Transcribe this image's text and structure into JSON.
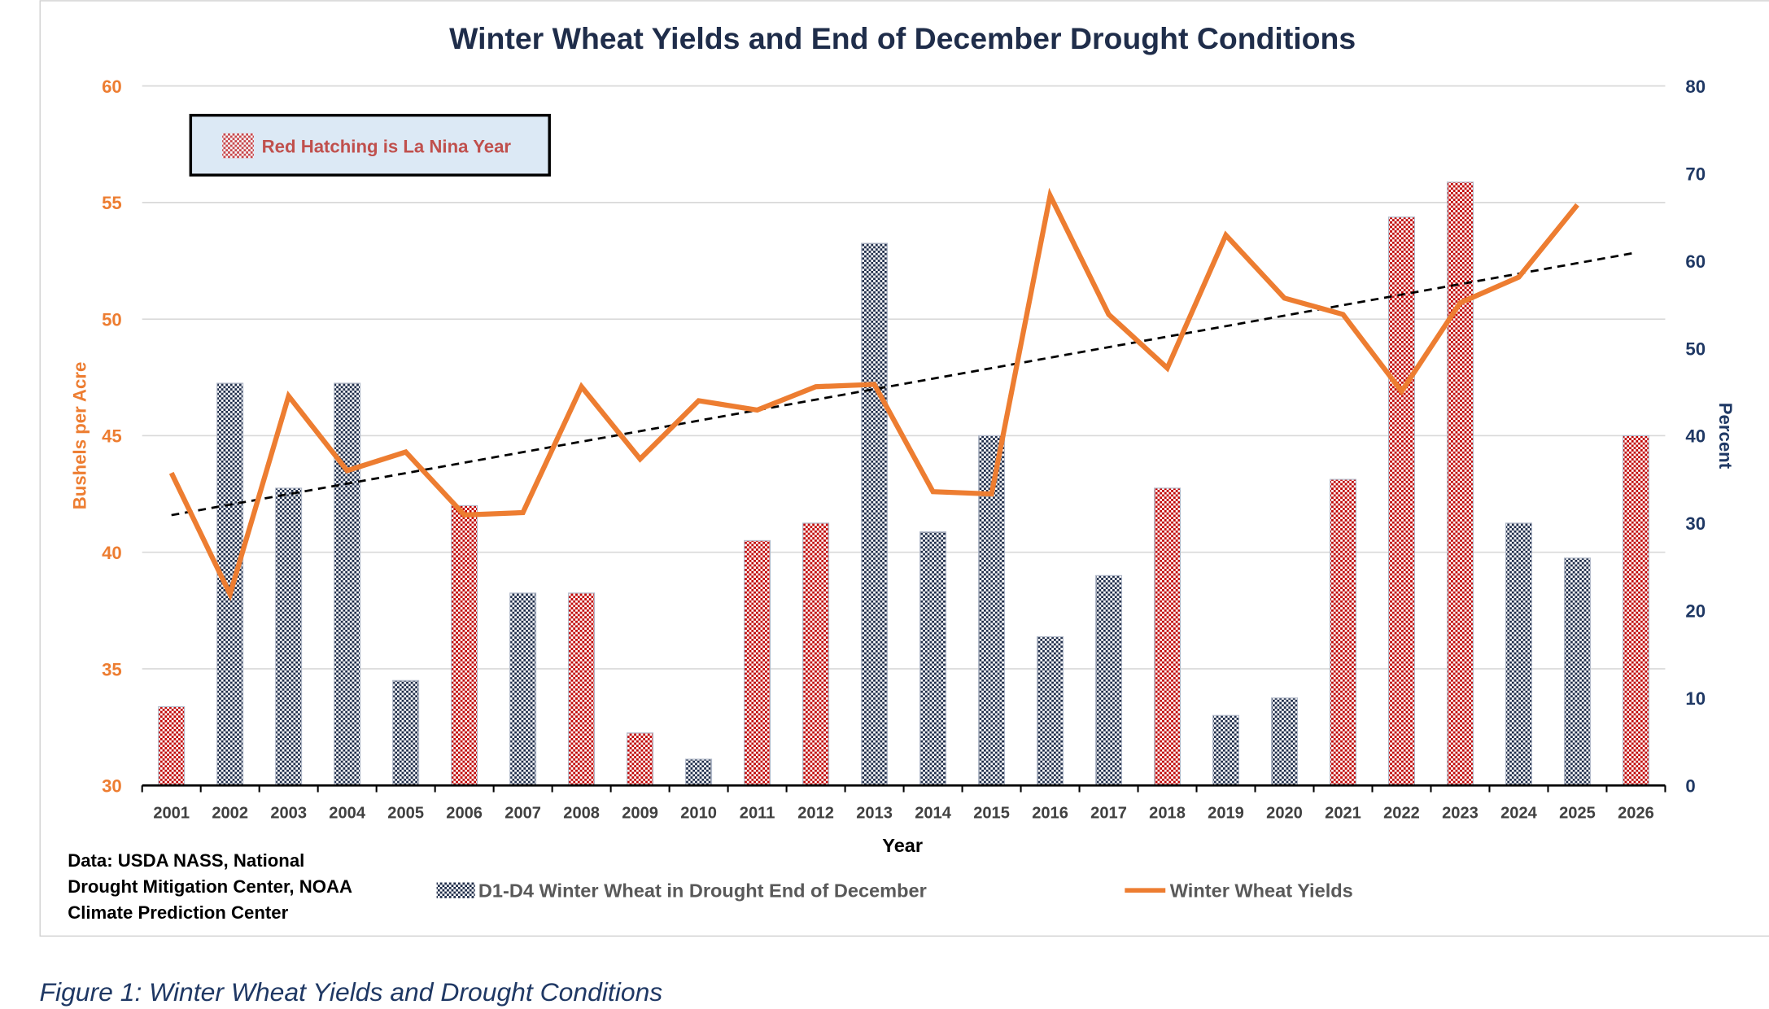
{
  "chart_data": {
    "type": "bar+line",
    "title": "Winter Wheat Yields and End of December Drought Conditions",
    "xlabel": "Year",
    "ylabel_left": "Bushels per Acre",
    "ylabel_right": "Percent",
    "ylim_left": [
      30,
      60
    ],
    "ylim_right": [
      0,
      80
    ],
    "yticks_left": [
      30,
      35,
      40,
      45,
      50,
      55,
      60
    ],
    "yticks_right": [
      0,
      10,
      20,
      30,
      40,
      50,
      60,
      70,
      80
    ],
    "grid": true,
    "categories": [
      "2001",
      "2002",
      "2003",
      "2004",
      "2005",
      "2006",
      "2007",
      "2008",
      "2009",
      "2010",
      "2011",
      "2012",
      "2013",
      "2014",
      "2015",
      "2016",
      "2017",
      "2018",
      "2019",
      "2020",
      "2021",
      "2022",
      "2023",
      "2024",
      "2025",
      "2026"
    ],
    "series": [
      {
        "name": "D1-D4 Winter Wheat in Drought End of December",
        "type": "bar",
        "axis": "right",
        "values": [
          9,
          46,
          34,
          46,
          12,
          32,
          22,
          22,
          6,
          3,
          28,
          30,
          62,
          29,
          40,
          17,
          24,
          34,
          8,
          10,
          35,
          65,
          69,
          30,
          26,
          40
        ],
        "la_nina": [
          true,
          false,
          false,
          false,
          false,
          true,
          false,
          true,
          true,
          false,
          true,
          true,
          false,
          false,
          false,
          false,
          false,
          true,
          false,
          false,
          true,
          true,
          true,
          false,
          false,
          true
        ]
      },
      {
        "name": "Winter Wheat Yields",
        "type": "line",
        "axis": "left",
        "values": [
          43.4,
          38.2,
          46.7,
          43.5,
          44.3,
          41.6,
          41.7,
          47.1,
          44.0,
          46.5,
          46.1,
          47.1,
          47.2,
          42.6,
          42.5,
          55.3,
          50.2,
          47.9,
          53.6,
          50.9,
          50.2,
          46.9,
          50.7,
          51.8,
          54.9,
          null
        ],
        "trendline": "linear"
      }
    ],
    "annotation": "Red Hatching is La Nina Year",
    "legend_position": "bottom"
  },
  "source_note": [
    "Data: USDA NASS, National",
    "Drought Mitigation Center, NOAA",
    "Climate Prediction Center"
  ],
  "caption": "Figure 1: Winter Wheat Yields and Drought Conditions",
  "colors": {
    "title": "#1f2d4a",
    "left_axis": "#ed7d31",
    "right_axis": "#1f3864",
    "line": "#ed7d31",
    "bar_blue": "#1f2d4a",
    "bar_red": "#c00000",
    "annotation_bg": "#dce9f5",
    "annotation_text": "#c0504d"
  }
}
